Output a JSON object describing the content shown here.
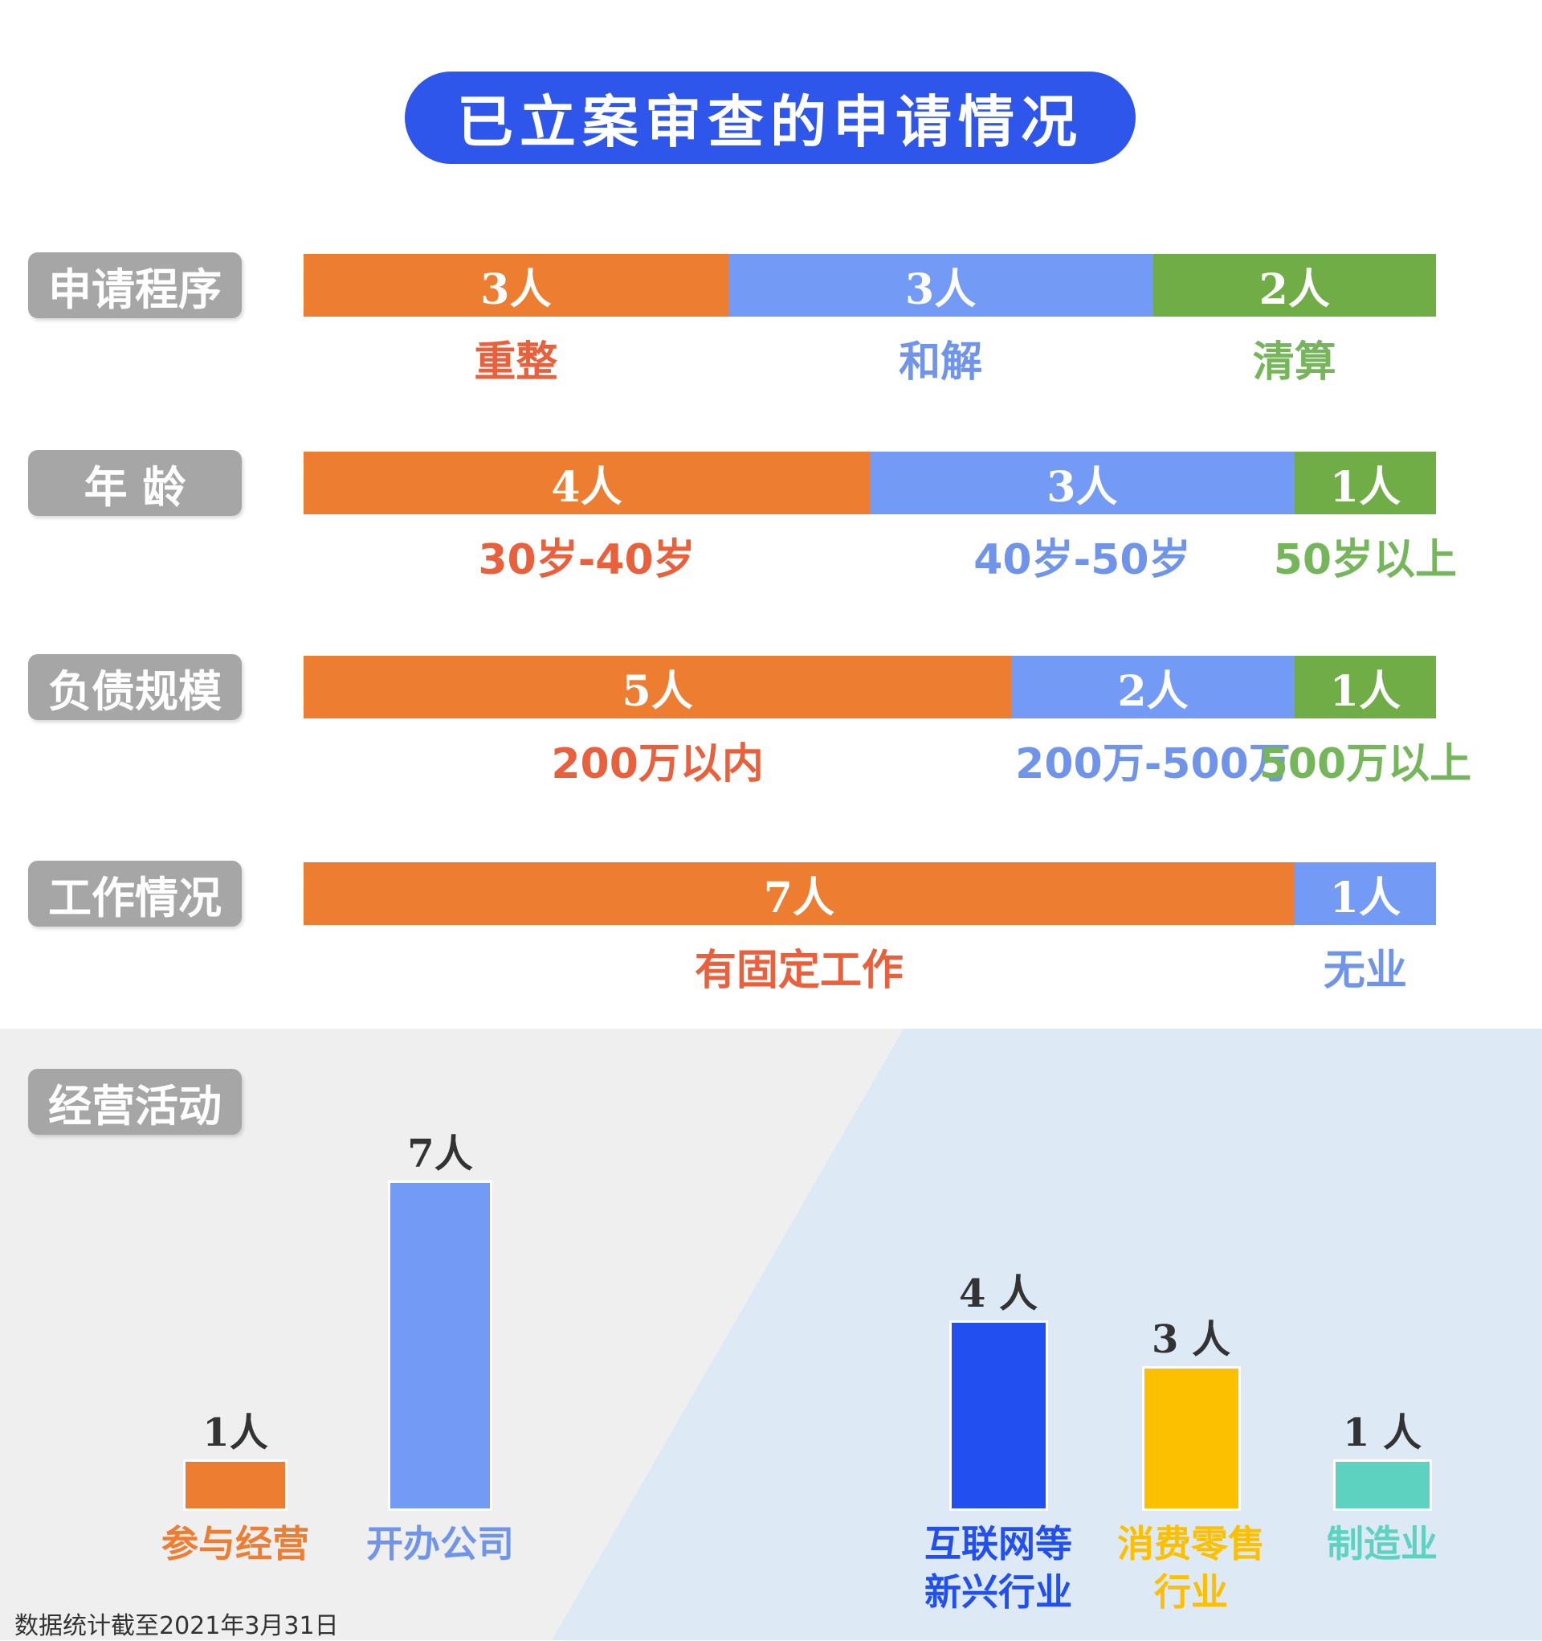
{
  "title": "已立案审查的申请情况",
  "chart_data": [
    {
      "type": "bar",
      "orientation": "horizontal-stacked",
      "category": "申请程序",
      "segments": [
        {
          "value": 3,
          "text": "3人",
          "label": "重整",
          "color": "#ed7d31",
          "label_color": "#e8603c"
        },
        {
          "value": 3,
          "text": "3人",
          "label": "和解",
          "color": "#739bf5",
          "label_color": "#6f94ea"
        },
        {
          "value": 2,
          "text": "2人",
          "label": "清算",
          "color": "#70ad47",
          "label_color": "#75b65a"
        }
      ]
    },
    {
      "type": "bar",
      "orientation": "horizontal-stacked",
      "category": "年 龄",
      "segments": [
        {
          "value": 4,
          "text": "4人",
          "label": "30岁-40岁",
          "color": "#ed7d31",
          "label_color": "#e8603c"
        },
        {
          "value": 3,
          "text": "3人",
          "label": "40岁-50岁",
          "color": "#739bf5",
          "label_color": "#6f94ea"
        },
        {
          "value": 1,
          "text": "1人",
          "label": "50岁以上",
          "color": "#70ad47",
          "label_color": "#75b65a"
        }
      ]
    },
    {
      "type": "bar",
      "orientation": "horizontal-stacked",
      "category": "负债规模",
      "segments": [
        {
          "value": 5,
          "text": "5人",
          "label": "200万以内",
          "color": "#ed7d31",
          "label_color": "#e8603c"
        },
        {
          "value": 2,
          "text": "2人",
          "label": "200万-500万",
          "color": "#739bf5",
          "label_color": "#6f94ea"
        },
        {
          "value": 1,
          "text": "1人",
          "label": "500万以上",
          "color": "#70ad47",
          "label_color": "#75b65a"
        }
      ]
    },
    {
      "type": "bar",
      "orientation": "horizontal-stacked",
      "category": "工作情况",
      "segments": [
        {
          "value": 7,
          "text": "7人",
          "label": "有固定工作",
          "color": "#ed7d31",
          "label_color": "#e8603c"
        },
        {
          "value": 1,
          "text": "1人",
          "label": "无业",
          "color": "#739bf5",
          "label_color": "#6f94ea"
        }
      ]
    },
    {
      "type": "bar",
      "orientation": "vertical",
      "category": "经营活动",
      "ylim": [
        0,
        7
      ],
      "groups": [
        {
          "background": "#efefef",
          "bars": [
            {
              "value": 1,
              "text": "1人",
              "label": [
                "参与经营"
              ],
              "color": "#ed7d31",
              "label_color": "#ed7d31"
            },
            {
              "value": 7,
              "text": "7人",
              "label": [
                "开办公司"
              ],
              "color": "#739bf5",
              "label_color": "#6f94ea"
            }
          ]
        },
        {
          "background": "#dde9f5",
          "bars": [
            {
              "value": 4,
              "text": "4 人",
              "label": [
                "互联网等",
                "新兴行业"
              ],
              "color": "#2250f0",
              "label_color": "#2250f0"
            },
            {
              "value": 3,
              "text": "3 人",
              "label": [
                "消费零售",
                "行业"
              ],
              "color": "#fcc000",
              "label_color": "#fcc000"
            },
            {
              "value": 1,
              "text": "1 人",
              "label": [
                "制造业"
              ],
              "color": "#5ed2c0",
              "label_color": "#5ed2c0"
            }
          ]
        }
      ]
    }
  ],
  "footnote": "数据统计截至2021年3月31日"
}
